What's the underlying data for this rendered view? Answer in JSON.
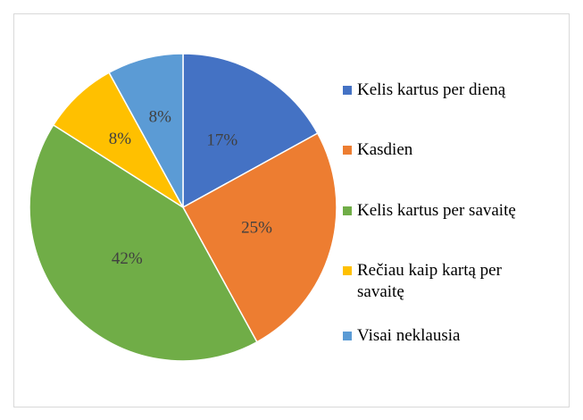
{
  "chart_data": {
    "type": "pie",
    "categories": [
      "Kelis kartus per dieną",
      "Kasdien",
      "Kelis kartus per savaitę",
      "Rečiau kaip kartą per savaitę",
      "Visai neklausia"
    ],
    "values": [
      17,
      25,
      42,
      8,
      8
    ],
    "value_labels": [
      "17%",
      "25%",
      "42%",
      "8%",
      "8%"
    ],
    "colors": [
      "#4472c4",
      "#ed7d31",
      "#70ad47",
      "#ffc000",
      "#5b9bd5"
    ],
    "legend": "right"
  }
}
